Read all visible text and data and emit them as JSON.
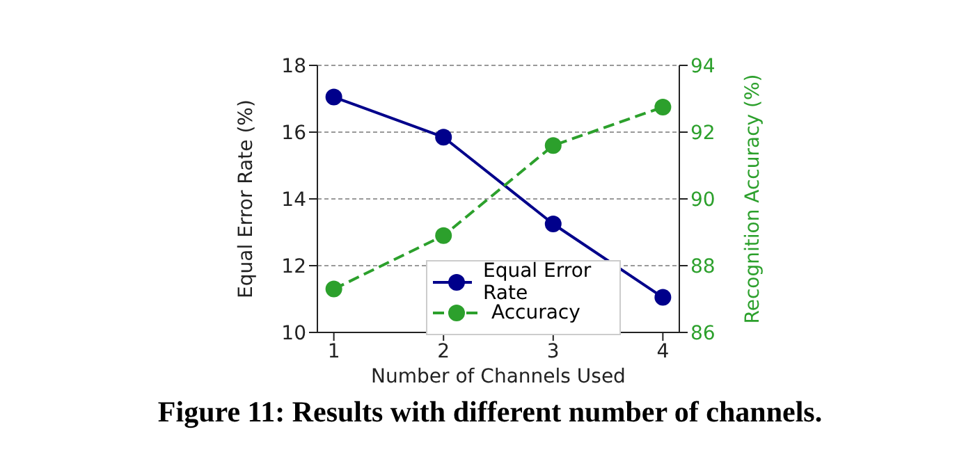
{
  "chart_data": {
    "type": "line",
    "title": "Figure 11: Results with different number of channels.",
    "xlabel": "Number of Channels Used",
    "ylabel": "Equal Error Rate (%)",
    "y2label": "Recognition Accuracy (%)",
    "x": [
      1,
      2,
      3,
      4
    ],
    "xlim": [
      0.85,
      4.15
    ],
    "xticks": [
      1,
      2,
      3,
      4
    ],
    "ylim": [
      10,
      18
    ],
    "yticks": [
      10,
      12,
      14,
      16,
      18
    ],
    "y2lim": [
      86,
      94
    ],
    "y2ticks": [
      86,
      88,
      90,
      92,
      94
    ],
    "grid": "y",
    "legend": "lower right",
    "marker": "circle",
    "series": [
      {
        "name": "Equal Error Rate",
        "color": "#00008b",
        "values": [
          17.05,
          15.85,
          13.25,
          11.05
        ],
        "line_style": "solid"
      },
      {
        "name": "Accuracy",
        "color": "#2ca02c",
        "values": [
          87.3,
          88.9,
          91.6,
          92.75
        ],
        "axis": "y2",
        "line_style": "dashed"
      }
    ]
  }
}
